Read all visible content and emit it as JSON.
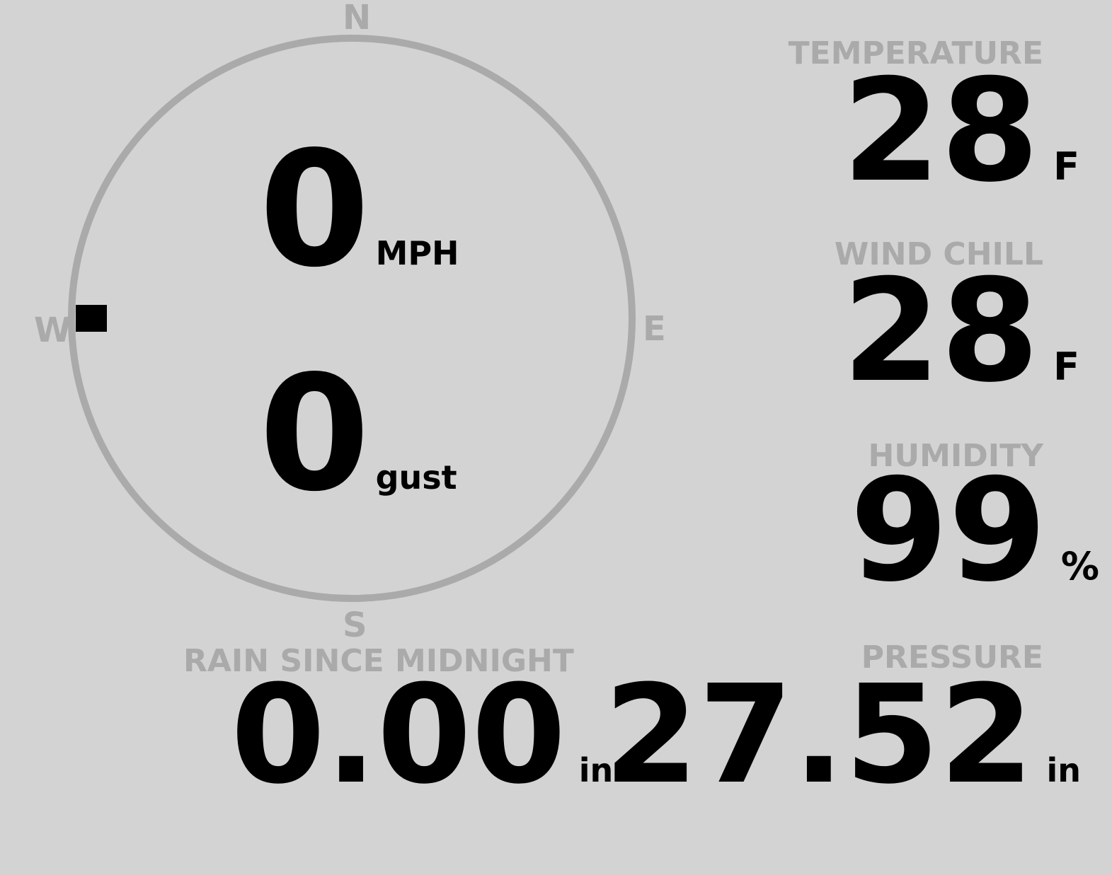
{
  "colors": {
    "background": "#d3d3d3",
    "label": "#aaaaaa",
    "value": "#000000",
    "compass_ring": "#aaaaaa",
    "needle": "#000000"
  },
  "compass": {
    "n": "N",
    "e": "E",
    "s": "S",
    "w": "W",
    "wind_direction_deg": 270
  },
  "wind": {
    "speed": "0",
    "speed_unit": "MPH",
    "gust": "0",
    "gust_unit": "gust"
  },
  "temperature": {
    "label": "TEMPERATURE",
    "value": "28",
    "unit": "F"
  },
  "wind_chill": {
    "label": "WIND CHILL",
    "value": "28",
    "unit": "F"
  },
  "humidity": {
    "label": "HUMIDITY",
    "value": "99",
    "unit": "%"
  },
  "rain": {
    "label": "RAIN SINCE MIDNIGHT",
    "value": "0.00",
    "unit": "in"
  },
  "pressure": {
    "label": "PRESSURE",
    "value": "27.52",
    "unit": "in"
  }
}
